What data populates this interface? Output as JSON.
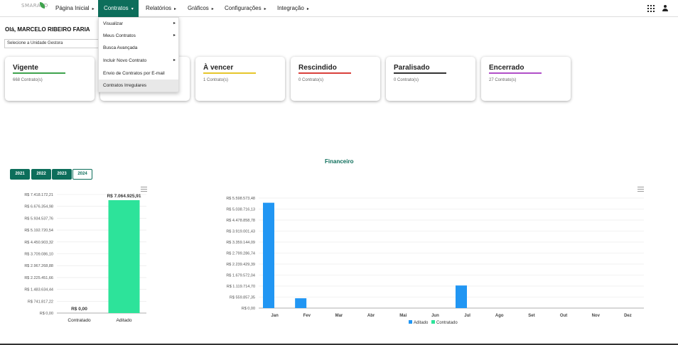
{
  "app": {
    "logo_text": "SMARAPD"
  },
  "nav": {
    "items": [
      {
        "label": "Página Inicial",
        "caret": "▸"
      },
      {
        "label": "Contratos",
        "caret": "▾"
      },
      {
        "label": "Relatórios",
        "caret": "▸"
      },
      {
        "label": "Gráficos",
        "caret": "▸"
      },
      {
        "label": "Configurações",
        "caret": "▸"
      },
      {
        "label": "Integração",
        "caret": "▸"
      }
    ]
  },
  "greeting": "Olá, MARCELO RIBEIRO FARIA",
  "unit_select": {
    "value": "Selecione a Unidade Gestora"
  },
  "dropdown": {
    "items": [
      {
        "label": "Visualizar",
        "arrow": "▸"
      },
      {
        "label": "Meus Contratos",
        "arrow": "▸"
      },
      {
        "label": "Busca Avançada",
        "arrow": ""
      },
      {
        "label": "Incluir Novo Contrato",
        "arrow": "▸"
      },
      {
        "label": "Envio de Contratos por E-mail",
        "arrow": ""
      },
      {
        "label": "Contratos Irregulares",
        "arrow": ""
      }
    ]
  },
  "cards": [
    {
      "title": "Vigente",
      "count": "668 Contrato(s)",
      "color": "#3fa34d"
    },
    {
      "title": "",
      "count": "",
      "color": "#888888"
    },
    {
      "title": "À vencer",
      "count": "1 Contrato(s)",
      "color": "#e6c62b"
    },
    {
      "title": "Rescindido",
      "count": "0 Contrato(s)",
      "color": "#d9403b"
    },
    {
      "title": "Paralisado",
      "count": "0 Contrato(s)",
      "color": "#333333"
    },
    {
      "title": "Encerrado",
      "count": "27 Contrato(s)",
      "color": "#b04fc8"
    }
  ],
  "years": [
    "2021",
    "2022",
    "2023",
    "2024"
  ],
  "selected_year": "2024",
  "financeiro_title": "Financeiro",
  "chart_data": [
    {
      "type": "bar",
      "categories": [
        "Contratado",
        "Aditado"
      ],
      "values": [
        0,
        7064925.91
      ],
      "data_labels": [
        "R$ 0,00",
        "R$ 7.064.925,91"
      ],
      "y_ticks": [
        "R$ 0,00",
        "R$ 741.817,22",
        "R$ 1.483.634,44",
        "R$ 2.225.451,66",
        "R$ 2.967.268,88",
        "R$ 3.709.086,10",
        "R$ 4.450.903,32",
        "R$ 5.192.720,54",
        "R$ 5.934.537,76",
        "R$ 6.676.354,98",
        "R$ 7.418.172,21"
      ],
      "ylim": [
        0,
        7418172.21
      ],
      "colors": [
        "#2196f3",
        "#2de39a"
      ]
    },
    {
      "type": "bar",
      "categories": [
        "Jan",
        "Fev",
        "Mar",
        "Abr",
        "Mai",
        "Jun",
        "Jul",
        "Ago",
        "Set",
        "Out",
        "Nov",
        "Dez"
      ],
      "series": [
        {
          "name": "Aditado",
          "color": "#2196f3",
          "values": [
            5360000,
            500000,
            0,
            0,
            0,
            0,
            1150000,
            0,
            0,
            0,
            0,
            0
          ]
        },
        {
          "name": "Contratado",
          "color": "#2de39a",
          "values": [
            0,
            0,
            0,
            0,
            0,
            0,
            0,
            0,
            0,
            0,
            0,
            0
          ]
        }
      ],
      "y_ticks": [
        "R$ 0,00",
        "R$ 559.857,35",
        "R$ 1.119.714,70",
        "R$ 1.679.572,04",
        "R$ 2.239.429,39",
        "R$ 2.799.286,74",
        "R$ 3.359.144,09",
        "R$ 3.919.001,43",
        "R$ 4.478.858,78",
        "R$ 5.038.716,13",
        "R$ 5.598.573,48"
      ],
      "ylim": [
        0,
        5598573.48
      ]
    }
  ]
}
